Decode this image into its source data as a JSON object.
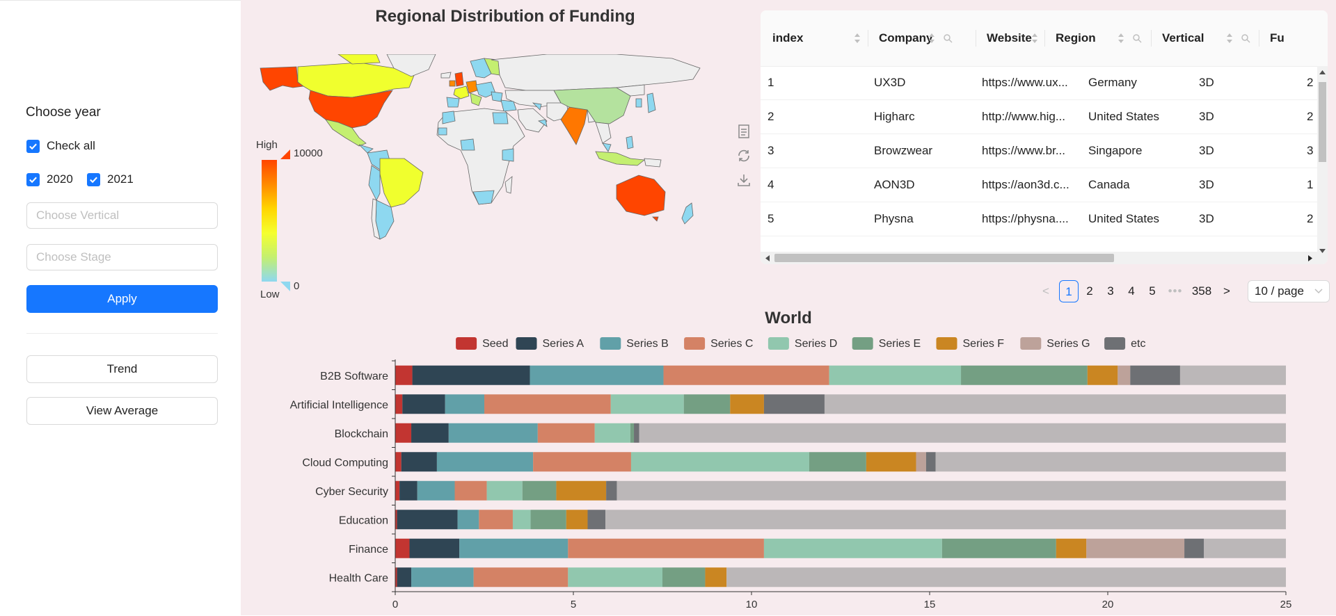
{
  "sidebar": {
    "choose_year": "Choose year",
    "check_all": "Check all",
    "years": [
      "2020",
      "2021"
    ],
    "vertical_placeholder": "Choose Vertical",
    "stage_placeholder": "Choose Stage",
    "apply": "Apply",
    "trend": "Trend",
    "view_average": "View Average",
    "accent": "#1677ff"
  },
  "map": {
    "title": "Regional Distribution of Funding",
    "scale_high": "High",
    "scale_low": "Low",
    "scale_max": "10000",
    "scale_min": "0",
    "tools": [
      "data-view-icon",
      "restore-icon",
      "save-image-icon"
    ]
  },
  "table": {
    "columns": [
      "index",
      "Company",
      "Website",
      "Region",
      "Vertical",
      "Fu"
    ],
    "rows": [
      [
        "1",
        "UX3D",
        "https://www.ux...",
        "Germany",
        "3D",
        "2"
      ],
      [
        "2",
        "Higharc",
        "http://www.hig...",
        "United States",
        "3D",
        "2"
      ],
      [
        "3",
        "Browzwear",
        "https://www.br...",
        "Singapore",
        "3D",
        "3"
      ],
      [
        "4",
        "AON3D",
        "https://aon3d.c...",
        "Canada",
        "3D",
        "1"
      ],
      [
        "5",
        "Physna",
        "https://physna....",
        "United States",
        "3D",
        "2"
      ]
    ],
    "pagination": {
      "pages": [
        "1",
        "2",
        "3",
        "4",
        "5"
      ],
      "ellipsis": "•••",
      "last_page": "358",
      "current": "1",
      "page_size": "10 / page",
      "prev": "<",
      "next": ">"
    }
  },
  "chart_data": {
    "type": "bar",
    "title": "World",
    "orientation": "horizontal",
    "stacked": true,
    "categories": [
      "Health Care",
      "Finance",
      "Education",
      "Cyber Security",
      "Cloud Computing",
      "Blockchain",
      "Artificial Intelligence",
      "B2B Software"
    ],
    "series": [
      {
        "name": "Seed",
        "color": "#c23531",
        "values": [
          0.05,
          0.4,
          0.05,
          0.12,
          0.17,
          0.45,
          0.2,
          0.48
        ]
      },
      {
        "name": "Series A",
        "color": "#2f4554",
        "values": [
          0.4,
          1.4,
          1.7,
          0.5,
          1.0,
          1.05,
          1.2,
          3.3
        ]
      },
      {
        "name": "Series B",
        "color": "#61a0a8",
        "values": [
          1.75,
          3.05,
          0.6,
          1.05,
          2.7,
          2.5,
          1.1,
          3.75
        ]
      },
      {
        "name": "Series C",
        "color": "#d48265",
        "values": [
          2.65,
          5.5,
          0.95,
          0.9,
          2.75,
          1.6,
          3.55,
          4.65
        ]
      },
      {
        "name": "Series D",
        "color": "#91c7ae",
        "values": [
          2.65,
          5.0,
          0.5,
          1.0,
          5.0,
          1.0,
          2.05,
          3.7
        ]
      },
      {
        "name": "Series E",
        "color": "#749f83",
        "values": [
          1.2,
          3.2,
          1.0,
          0.95,
          1.6,
          0.1,
          1.3,
          3.55
        ]
      },
      {
        "name": "Series F",
        "color": "#ca8622",
        "values": [
          0.6,
          0.85,
          0.6,
          1.4,
          1.4,
          0,
          0.95,
          0.85
        ]
      },
      {
        "name": "Series G",
        "color": "#bda29a",
        "values": [
          0,
          2.75,
          0,
          0,
          0.28,
          0,
          0,
          0.35
        ]
      },
      {
        "name": "etc",
        "color": "#6e7074",
        "values": [
          0,
          0.55,
          0.5,
          0.3,
          0.27,
          0.15,
          1.7,
          1.4
        ]
      }
    ],
    "remainder_color": "#bbb7b8",
    "xlim": [
      0,
      25
    ],
    "xticks": [
      "0",
      "5",
      "10",
      "15",
      "20",
      "25"
    ],
    "legend_position": "top",
    "grid": false
  }
}
